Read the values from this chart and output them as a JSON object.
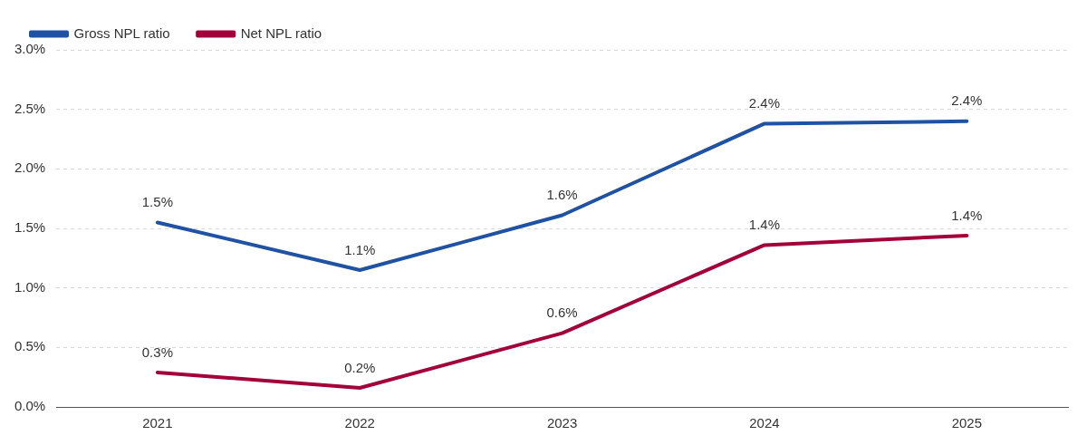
{
  "chart_data": {
    "type": "line",
    "categories": [
      "2021",
      "2022",
      "2023",
      "2024",
      "2025"
    ],
    "series": [
      {
        "name": "Gross NPL ratio",
        "color": "#1f52a3",
        "values": [
          1.55,
          1.15,
          1.61,
          2.38,
          2.4
        ],
        "value_labels": [
          "1.5%",
          "1.1%",
          "1.6%",
          "2.4%",
          "2.4%"
        ]
      },
      {
        "name": "Net NPL ratio",
        "color": "#a3003a",
        "values": [
          0.29,
          0.16,
          0.62,
          1.36,
          1.44
        ],
        "value_labels": [
          "0.3%",
          "0.2%",
          "0.6%",
          "1.4%",
          "1.4%"
        ]
      }
    ],
    "ylim": [
      0,
      3
    ],
    "yticks": [
      {
        "value": 0,
        "label": "0.0%"
      },
      {
        "value": 0.5,
        "label": "0.5%"
      },
      {
        "value": 1,
        "label": "1.0%"
      },
      {
        "value": 1.5,
        "label": "1.5%"
      },
      {
        "value": 2,
        "label": "2.0%"
      },
      {
        "value": 2.5,
        "label": "2.5%"
      },
      {
        "value": 3,
        "label": "3.0%"
      }
    ],
    "grid": "y",
    "legend": "top left",
    "marker": "none",
    "line_style": "solid"
  }
}
